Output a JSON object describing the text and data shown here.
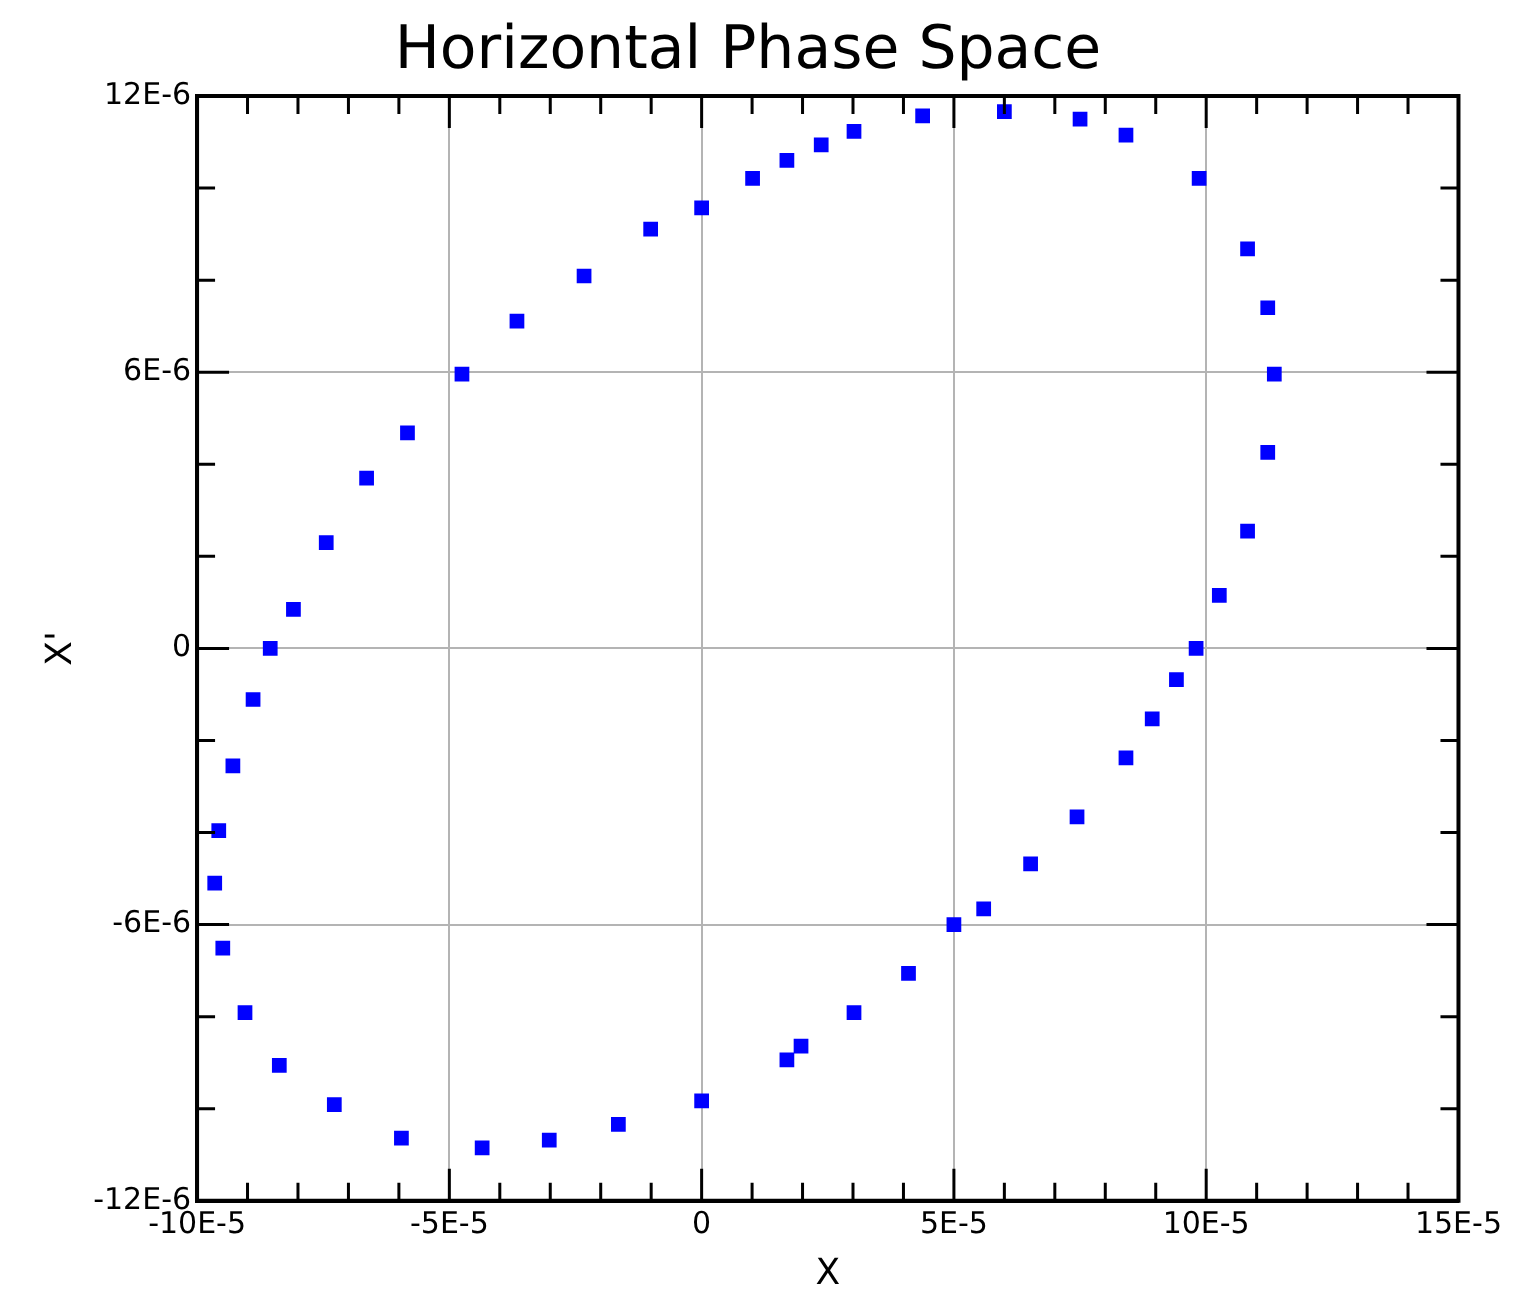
{
  "chart_data": {
    "type": "scatter",
    "title": "Horizontal Phase Space",
    "xlabel": "X",
    "ylabel": "X'",
    "x": [
      6e-05,
      7.5e-05,
      8.41e-05,
      9.86e-05,
      0.0001082,
      0.0001122,
      0.0001135,
      0.0001122,
      0.0001082,
      0.0001026,
      9.8e-05,
      9.41e-05,
      8.93e-05,
      8.41e-05,
      7.44e-05,
      6.52e-05,
      5.59e-05,
      5e-05,
      4.1e-05,
      3.02e-05,
      1.97e-05,
      1.69e-05,
      0,
      -1.65e-05,
      -3.02e-05,
      -4.35e-05,
      -5.95e-05,
      -7.28e-05,
      -8.37e-05,
      -9.05e-05,
      -9.49e-05,
      -9.65e-05,
      -9.57e-05,
      -9.29e-05,
      -8.89e-05,
      -8.55e-05,
      -8.09e-05,
      -7.44e-05,
      -6.64e-05,
      -5.83e-05,
      -4.75e-05,
      -3.66e-05,
      -2.33e-05,
      -1.01e-05,
      0,
      1.01e-05,
      1.69e-05,
      2.37e-05,
      3.02e-05,
      4.38e-05
    ],
    "series": [
      {
        "color": "#0000ff",
        "values": [
          1.166e-05,
          1.15e-05,
          1.115e-05,
          1.021e-05,
          8.68e-06,
          7.4e-06,
          5.96e-06,
          4.26e-06,
          2.55e-06,
          1.15e-06,
          0,
          -6.8e-07,
          -1.53e-06,
          -2.38e-06,
          -3.66e-06,
          -4.68e-06,
          -5.66e-06,
          -6e-06,
          -7.06e-06,
          -7.91e-06,
          -8.64e-06,
          -8.94e-06,
          -9.83e-06,
          -1.034e-05,
          -1.068e-05,
          -1.085e-05,
          -1.064e-05,
          -9.91e-06,
          -9.06e-06,
          -7.91e-06,
          -6.51e-06,
          -5.1e-06,
          -3.96e-06,
          -2.55e-06,
          -1.11e-06,
          0,
          8.5e-07,
          2.3e-06,
          3.7e-06,
          4.68e-06,
          5.96e-06,
          7.11e-06,
          8.09e-06,
          9.11e-06,
          9.57e-06,
          1.021e-05,
          1.06e-05,
          1.094e-05,
          1.123e-05,
          1.157e-05
        ]
      }
    ],
    "xlim": [
      -0.0001,
      0.00015
    ],
    "xticks": [
      {
        "value": -0.0001,
        "label": "-10E-5"
      },
      {
        "value": -9e-05,
        "label": null
      },
      {
        "value": -8e-05,
        "label": null
      },
      {
        "value": -7e-05,
        "label": null
      },
      {
        "value": -6e-05,
        "label": null
      },
      {
        "value": -5e-05,
        "label": "-5E-5"
      },
      {
        "value": -4e-05,
        "label": null
      },
      {
        "value": -3e-05,
        "label": null
      },
      {
        "value": -2e-05,
        "label": null
      },
      {
        "value": -1e-05,
        "label": null
      },
      0,
      {
        "value": 1e-05,
        "label": null
      },
      {
        "value": 2e-05,
        "label": null
      },
      {
        "value": 3e-05,
        "label": null
      },
      {
        "value": 4e-05,
        "label": null
      },
      {
        "value": 5e-05,
        "label": "5E-5"
      },
      {
        "value": 6e-05,
        "label": null
      },
      {
        "value": 7e-05,
        "label": null
      },
      {
        "value": 8e-05,
        "label": null
      },
      {
        "value": 9e-05,
        "label": null
      },
      {
        "value": 0.0001,
        "label": "10E-5"
      },
      {
        "value": 0.00011,
        "label": null
      },
      {
        "value": 0.00012,
        "label": null
      },
      {
        "value": 0.00013,
        "label": null
      },
      {
        "value": 0.00014,
        "label": null
      },
      {
        "value": 0.00015,
        "label": "15E-5"
      }
    ],
    "ylim": [
      -1.2e-05,
      1.2e-05
    ],
    "yticks": [
      {
        "value": -1.2e-05,
        "label": "-12E-6"
      },
      {
        "value": -1e-05,
        "label": null
      },
      {
        "value": -8e-06,
        "label": null
      },
      {
        "value": -6e-06,
        "label": "-6E-6"
      },
      {
        "value": -4e-06,
        "label": null
      },
      {
        "value": -2e-06,
        "label": null
      },
      0,
      {
        "value": 2e-06,
        "label": null
      },
      {
        "value": 4e-06,
        "label": null
      },
      {
        "value": 6e-06,
        "label": "6E-6"
      },
      {
        "value": 8e-06,
        "label": null
      },
      {
        "value": 1e-05,
        "label": null
      },
      {
        "value": 1.2e-05,
        "label": "12E-6"
      }
    ],
    "grid": true,
    "legend": false,
    "marker": "square"
  }
}
